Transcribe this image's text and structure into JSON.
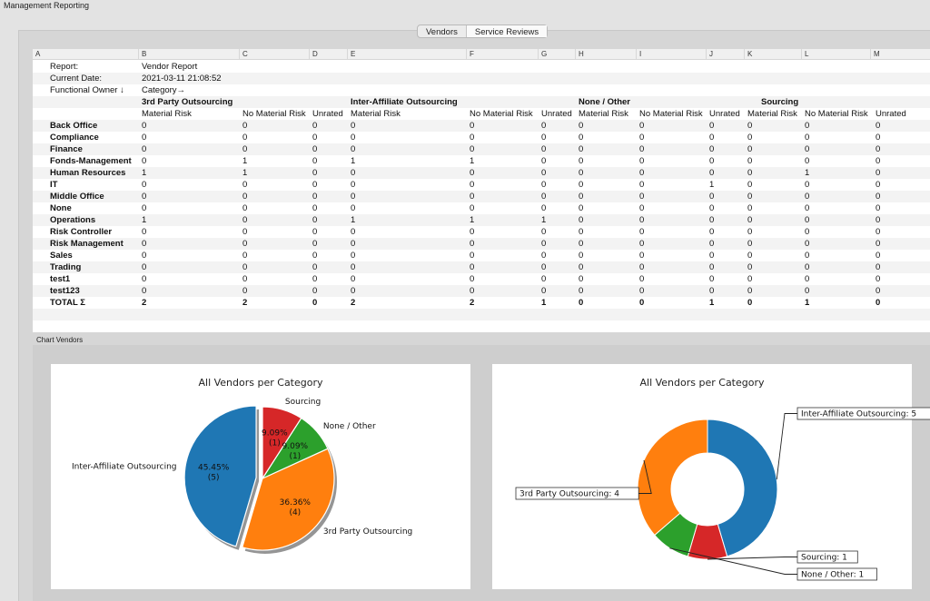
{
  "app": {
    "title": "Management Reporting"
  },
  "tabs": [
    {
      "label": "Vendors",
      "active": false
    },
    {
      "label": "Service Reviews",
      "active": true
    }
  ],
  "sheet": {
    "columns": [
      "A",
      "B",
      "C",
      "D",
      "E",
      "F",
      "G",
      "H",
      "I",
      "J",
      "K",
      "L",
      "M"
    ],
    "meta": [
      {
        "label": "Report:",
        "value": "Vendor Report"
      },
      {
        "label": "Current Date:",
        "value": "2021-03-11 21:08:52"
      },
      {
        "label": "Functional Owner ↓",
        "value": "Category→"
      }
    ],
    "categories": [
      "3rd Party Outsourcing",
      "Inter-Affiliate Outsourcing",
      "None / Other",
      "Sourcing"
    ],
    "subheaders": [
      "Material Risk",
      "No Material Risk",
      "Unrated"
    ],
    "rows": [
      {
        "owner": "Back Office",
        "values": [
          0,
          0,
          0,
          0,
          0,
          0,
          0,
          0,
          0,
          0,
          0,
          0
        ]
      },
      {
        "owner": "Compliance",
        "values": [
          0,
          0,
          0,
          0,
          0,
          0,
          0,
          0,
          0,
          0,
          0,
          0
        ]
      },
      {
        "owner": "Finance",
        "values": [
          0,
          0,
          0,
          0,
          0,
          0,
          0,
          0,
          0,
          0,
          0,
          0
        ]
      },
      {
        "owner": "Fonds-Management",
        "values": [
          0,
          1,
          0,
          1,
          1,
          0,
          0,
          0,
          0,
          0,
          0,
          0
        ]
      },
      {
        "owner": "Human Resources",
        "values": [
          1,
          1,
          0,
          0,
          0,
          0,
          0,
          0,
          0,
          0,
          1,
          0
        ]
      },
      {
        "owner": "IT",
        "values": [
          0,
          0,
          0,
          0,
          0,
          0,
          0,
          0,
          1,
          0,
          0,
          0
        ]
      },
      {
        "owner": "Middle Office",
        "values": [
          0,
          0,
          0,
          0,
          0,
          0,
          0,
          0,
          0,
          0,
          0,
          0
        ]
      },
      {
        "owner": "None",
        "values": [
          0,
          0,
          0,
          0,
          0,
          0,
          0,
          0,
          0,
          0,
          0,
          0
        ]
      },
      {
        "owner": "Operations",
        "values": [
          1,
          0,
          0,
          1,
          1,
          1,
          0,
          0,
          0,
          0,
          0,
          0
        ]
      },
      {
        "owner": "Risk Controller",
        "values": [
          0,
          0,
          0,
          0,
          0,
          0,
          0,
          0,
          0,
          0,
          0,
          0
        ]
      },
      {
        "owner": "Risk Management",
        "values": [
          0,
          0,
          0,
          0,
          0,
          0,
          0,
          0,
          0,
          0,
          0,
          0
        ]
      },
      {
        "owner": "Sales",
        "values": [
          0,
          0,
          0,
          0,
          0,
          0,
          0,
          0,
          0,
          0,
          0,
          0
        ]
      },
      {
        "owner": "Trading",
        "values": [
          0,
          0,
          0,
          0,
          0,
          0,
          0,
          0,
          0,
          0,
          0,
          0
        ]
      },
      {
        "owner": "test1",
        "values": [
          0,
          0,
          0,
          0,
          0,
          0,
          0,
          0,
          0,
          0,
          0,
          0
        ]
      },
      {
        "owner": "test123",
        "values": [
          0,
          0,
          0,
          0,
          0,
          0,
          0,
          0,
          0,
          0,
          0,
          0
        ]
      }
    ],
    "total": {
      "owner": "TOTAL Σ",
      "values": [
        2,
        2,
        0,
        2,
        2,
        1,
        0,
        0,
        1,
        0,
        1,
        0
      ]
    }
  },
  "charts_section": {
    "label": "Chart Vendors"
  },
  "chart_data": [
    {
      "type": "pie",
      "title": "All Vendors per Category",
      "slices": [
        {
          "label": "Inter-Affiliate Outsourcing",
          "value": 5,
          "pct_label": "45.45%",
          "count_label": "(5)",
          "color": "#1f77b4",
          "exploded": true
        },
        {
          "label": "3rd Party Outsourcing",
          "value": 4,
          "pct_label": "36.36%",
          "count_label": "(4)",
          "color": "#ff7f0e"
        },
        {
          "label": "None / Other",
          "value": 1,
          "pct_label": "9.09%",
          "count_label": "(1)",
          "color": "#2ca02c"
        },
        {
          "label": "Sourcing",
          "value": 1,
          "pct_label": "9.09%",
          "count_label": "(1)",
          "color": "#d62728"
        }
      ]
    },
    {
      "type": "pie",
      "title": "All Vendors per Category",
      "slices": [
        {
          "label": "Inter-Affiliate Outsourcing: 5",
          "value": 5,
          "color": "#1f77b4"
        },
        {
          "label": "Sourcing: 1",
          "value": 1,
          "color": "#d62728"
        },
        {
          "label": "None / Other: 1",
          "value": 1,
          "color": "#2ca02c"
        },
        {
          "label": "3rd Party Outsourcing: 4",
          "value": 4,
          "color": "#ff7f0e"
        }
      ]
    }
  ]
}
